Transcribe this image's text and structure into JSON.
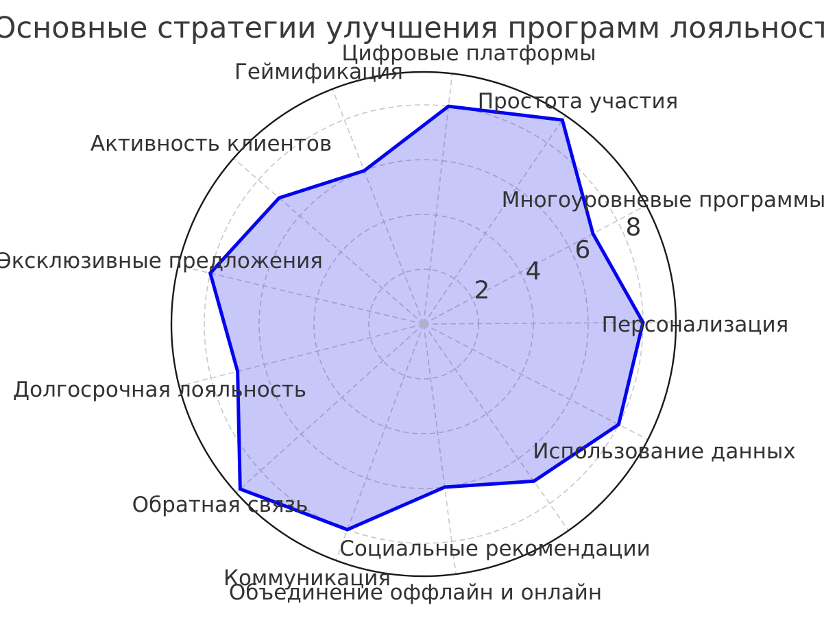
{
  "title": "Основные стратегии улучшения программ лояльности",
  "chart_data": {
    "type": "radar",
    "title": "Основные стратегии улучшения программ лояльности",
    "categories": [
      "Цифровые платформы",
      "Простота участия",
      "Многоуровневые программы",
      "Персонализация",
      "Использование данных",
      "Социальные рекомендации",
      "Объединение оффлайн и онлайн",
      "Коммуникация",
      "Обратная связь",
      "Долгосрочная лояльность",
      "Эксклюзивные предложения",
      "Активность клиентов",
      "Геймификация"
    ],
    "values": [
      8,
      9,
      7,
      8,
      8,
      7,
      6,
      8,
      9,
      7,
      8,
      7,
      6
    ],
    "r_ticks": [
      2,
      4,
      6,
      8
    ],
    "r_max": 9.2,
    "start_angle_deg": 83.5,
    "direction": "clockwise",
    "grid": true,
    "legend": "none",
    "colors": {
      "line": "#0404ee",
      "fill": "rgba(20,20,230,0.24)",
      "grid": "#c8c8c8",
      "outline": "#1a1a1a",
      "text": "#333333",
      "title": "#3a3a3a",
      "center_dot": "#b2b2bd"
    }
  }
}
